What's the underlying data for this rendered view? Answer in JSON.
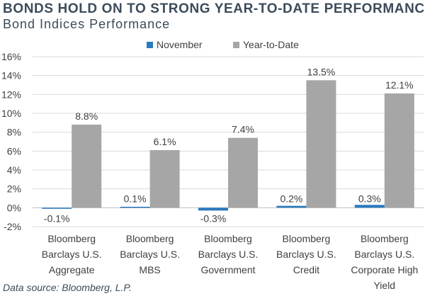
{
  "title": "BONDS HOLD ON TO STRONG YEAR-TO-DATE PERFORMANCE",
  "subtitle": "Bond Indices Performance",
  "source": "Data source: Bloomberg, L.P.",
  "colors": {
    "november": "#2a7abf",
    "ytd": "#a6a6a6",
    "grid": "#d9d9d9",
    "text": "#404040"
  },
  "chart_data": {
    "type": "bar",
    "title": "",
    "xlabel": "",
    "ylabel": "",
    "categories": [
      [
        "Bloomberg",
        "Barclays U.S.",
        "Aggregate"
      ],
      [
        "Bloomberg",
        "Barclays U.S.",
        "MBS"
      ],
      [
        "Bloomberg",
        "Barclays U.S.",
        "Government"
      ],
      [
        "Bloomberg",
        "Barclays U.S.",
        "Credit"
      ],
      [
        "Bloomberg",
        "Barclays U.S.",
        "Corporate High",
        "Yield"
      ]
    ],
    "series": [
      {
        "name": "November",
        "values": [
          -0.1,
          0.1,
          -0.3,
          0.2,
          0.3
        ],
        "labels": [
          "-0.1%",
          "0.1%",
          "-0.3%",
          "0.2%",
          "0.3%"
        ]
      },
      {
        "name": "Year-to-Date",
        "values": [
          8.8,
          6.1,
          7.4,
          13.5,
          12.1
        ],
        "labels": [
          "8.8%",
          "6.1%",
          "7.4%",
          "13.5%",
          "12.1%"
        ]
      }
    ],
    "ylim": [
      -2,
      16
    ],
    "yticks": [
      -2,
      0,
      2,
      4,
      6,
      8,
      10,
      12,
      14,
      16
    ],
    "ytick_labels": [
      "-2%",
      "0%",
      "2%",
      "4%",
      "6%",
      "8%",
      "10%",
      "12%",
      "14%",
      "16%"
    ],
    "grid": true,
    "legend_position": "top-center"
  }
}
